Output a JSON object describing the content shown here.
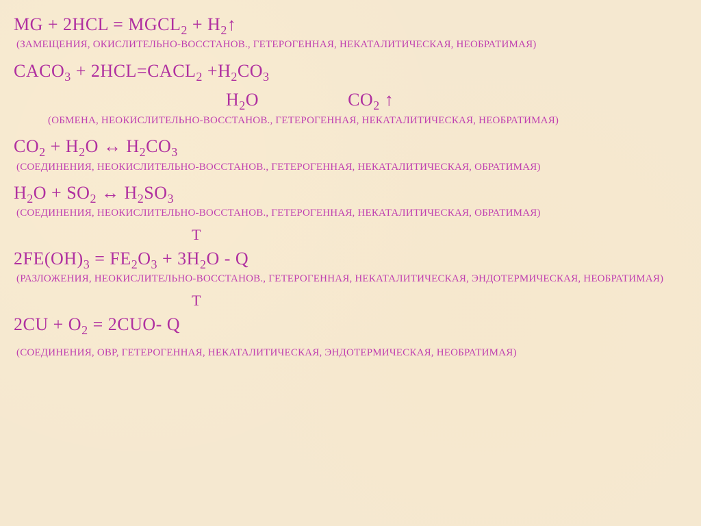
{
  "colors": {
    "text_primary": "#b030a0",
    "text_note": "#c040b0",
    "background": "#f5e8d0"
  },
  "typography": {
    "equation_fontsize": 26,
    "note_fontsize": 15,
    "font_family": "Georgia, Times New Roman, serif"
  },
  "reactions": [
    {
      "equation_html": "MG + 2HCL = MGCL<sub>2</sub> + H<sub>2</sub>↑",
      "note": "(ЗАМЕЩЕНИЯ, ОКИСЛИТЕЛЬНО-ВОССТАНОВ., ГЕТЕРОГЕННАЯ, НЕКАТАЛИТИЧЕСКАЯ, НЕОБРАТИМАЯ)"
    },
    {
      "equation_html": "CACO<sub>3</sub> + 2HCL=CACL<sub>2</sub> +H<sub>2</sub>CO<sub>3</sub>",
      "products_split_html": "H<sub>2</sub>O<span class=\"gap\"></span>CO<sub>2</sub> ↑",
      "note": "(ОБМЕНА, НЕОКИСЛИТЕЛЬНО-ВОССТАНОВ., ГЕТЕРОГЕННАЯ, НЕКАТАЛИТИЧЕСКАЯ, НЕОБРАТИМАЯ)"
    },
    {
      "equation_html": "CO<sub>2</sub> + H<sub>2</sub>O ↔ H<sub>2</sub>CO<sub>3</sub>",
      "note": "(СОЕДИНЕНИЯ, НЕОКИСЛИТЕЛЬНО-ВОССТАНОВ., ГЕТЕРОГЕННАЯ, НЕКАТАЛИТИЧЕСКАЯ, ОБРАТИМАЯ)"
    },
    {
      "equation_html": "H<sub>2</sub>O + SO<sub>2</sub> ↔ H<sub>2</sub>SO<sub>3</sub>",
      "note": "(СОЕДИНЕНИЯ, НЕОКИСЛИТЕЛЬНО-ВОССТАНОВ., ГЕТЕРОГЕННАЯ, НЕКАТАЛИТИЧЕСКАЯ, ОБРАТИМАЯ)"
    },
    {
      "t_marker": "T",
      "equation_html": "2FE(OH)<sub>3</sub> = FE<sub>2</sub>O<sub>3</sub> + 3H<sub>2</sub>O - Q",
      "note": "(РАЗЛОЖЕНИЯ, НЕОКИСЛИТЕЛЬНО-ВОССТАНОВ., ГЕТЕРОГЕННАЯ, НЕКАТАЛИТИЧЕСКАЯ, ЭНДОТЕРМИЧЕСКАЯ, НЕОБРАТИМАЯ)"
    },
    {
      "t_marker": "T",
      "equation_html": "2CU + O<sub>2</sub> = 2CUO- Q",
      "note": "(СОЕДИНЕНИЯ,  ОВР, ГЕТЕРОГЕННАЯ, НЕКАТАЛИТИЧЕСКАЯ,  ЭНДОТЕРМИЧЕСКАЯ, НЕОБРАТИМАЯ)"
    }
  ]
}
